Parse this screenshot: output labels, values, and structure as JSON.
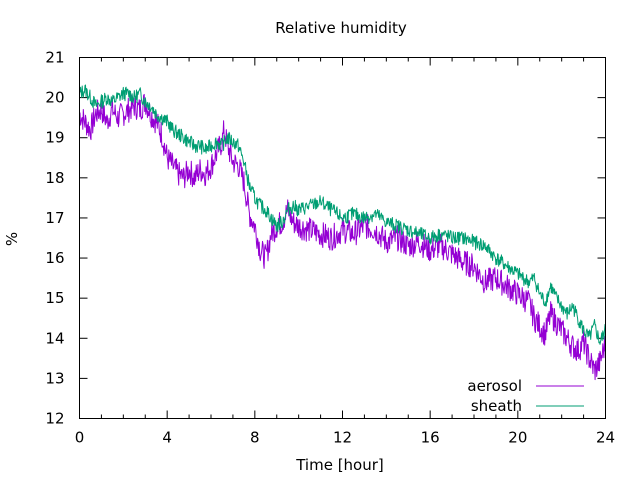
{
  "chart_data": {
    "type": "line",
    "title": "Relative humidity",
    "xlabel": "Time [hour]",
    "ylabel": "%",
    "xlim": [
      0,
      24
    ],
    "ylim": [
      12,
      21
    ],
    "xticks": [
      0,
      4,
      8,
      12,
      16,
      20,
      24
    ],
    "yticks": [
      12,
      13,
      14,
      15,
      16,
      17,
      18,
      19,
      20,
      21
    ],
    "grid": false,
    "legend_position": "bottom-right",
    "series": [
      {
        "name": "aerosol",
        "color": "#9400d3",
        "x": [
          0,
          0.25,
          0.5,
          0.75,
          1,
          1.25,
          1.5,
          1.75,
          2,
          2.25,
          2.5,
          2.75,
          3,
          3.25,
          3.5,
          3.75,
          4,
          4.25,
          4.5,
          4.75,
          5,
          5.25,
          5.5,
          5.75,
          6,
          6.25,
          6.5,
          6.6,
          6.75,
          7,
          7.25,
          7.5,
          7.75,
          8,
          8.25,
          8.5,
          8.75,
          9,
          9.25,
          9.5,
          9.75,
          10,
          10.5,
          11,
          11.5,
          12,
          12.5,
          13,
          13.5,
          14,
          14.5,
          15,
          15.5,
          16,
          16.5,
          17,
          17.5,
          18,
          18.5,
          19,
          19.5,
          20,
          20.5,
          20.75,
          21,
          21.25,
          21.5,
          21.75,
          22,
          22.25,
          22.5,
          22.75,
          23,
          23.25,
          23.5,
          23.75,
          24
        ],
        "y": [
          19.6,
          19.4,
          19.2,
          19.6,
          19.7,
          19.4,
          19.7,
          19.5,
          19.6,
          19.7,
          19.8,
          19.7,
          19.9,
          19.6,
          19.4,
          19.1,
          18.5,
          18.3,
          18.1,
          18.0,
          18.2,
          18.0,
          18.2,
          18.1,
          18.3,
          18.6,
          18.9,
          19.2,
          18.8,
          18.4,
          18.3,
          17.9,
          17.1,
          16.8,
          16.2,
          16.0,
          16.6,
          16.8,
          16.9,
          17.2,
          16.9,
          16.8,
          16.7,
          16.6,
          16.5,
          16.7,
          16.6,
          16.8,
          16.7,
          16.4,
          16.5,
          16.3,
          16.4,
          16.2,
          16.3,
          16.1,
          15.9,
          15.8,
          15.4,
          15.5,
          15.3,
          15.1,
          14.9,
          14.5,
          14.3,
          14.1,
          14.6,
          14.4,
          14.2,
          14.0,
          13.8,
          13.7,
          13.9,
          13.5,
          13.2,
          13.4,
          13.9
        ]
      },
      {
        "name": "sheath",
        "color": "#009e73",
        "x": [
          0,
          0.25,
          0.5,
          0.75,
          1,
          1.25,
          1.5,
          1.75,
          2,
          2.25,
          2.5,
          2.75,
          3,
          3.25,
          3.5,
          3.75,
          4,
          4.25,
          4.5,
          4.75,
          5,
          5.25,
          5.5,
          5.75,
          6,
          6.25,
          6.5,
          6.75,
          7,
          7.25,
          7.5,
          7.75,
          8,
          8.25,
          8.5,
          8.75,
          9,
          9.25,
          9.5,
          9.75,
          10,
          10.5,
          11,
          11.5,
          12,
          12.5,
          13,
          13.5,
          14,
          14.5,
          15,
          15.5,
          16,
          16.5,
          17,
          17.5,
          18,
          18.5,
          19,
          19.5,
          20,
          20.5,
          20.75,
          21,
          21.25,
          21.5,
          21.75,
          22,
          22.25,
          22.5,
          22.75,
          23,
          23.25,
          23.5,
          23.75,
          24
        ],
        "y": [
          20.1,
          20.2,
          20.0,
          19.8,
          19.9,
          20.0,
          19.9,
          20.0,
          20.1,
          20.1,
          20.0,
          20.1,
          19.9,
          19.8,
          19.6,
          19.5,
          19.4,
          19.2,
          19.1,
          19.0,
          18.9,
          18.8,
          18.8,
          18.7,
          18.8,
          18.9,
          18.8,
          19.0,
          18.9,
          18.8,
          18.4,
          17.8,
          17.5,
          17.3,
          17.2,
          17.0,
          16.8,
          16.9,
          17.2,
          17.3,
          17.2,
          17.3,
          17.4,
          17.2,
          17.0,
          17.1,
          17.0,
          17.1,
          16.9,
          16.8,
          16.7,
          16.6,
          16.5,
          16.6,
          16.5,
          16.5,
          16.4,
          16.3,
          16.0,
          15.8,
          15.6,
          15.4,
          15.5,
          15.1,
          14.9,
          15.3,
          15.0,
          14.8,
          14.6,
          14.8,
          14.5,
          14.2,
          14.0,
          14.3,
          13.9,
          14.2
        ]
      }
    ]
  }
}
